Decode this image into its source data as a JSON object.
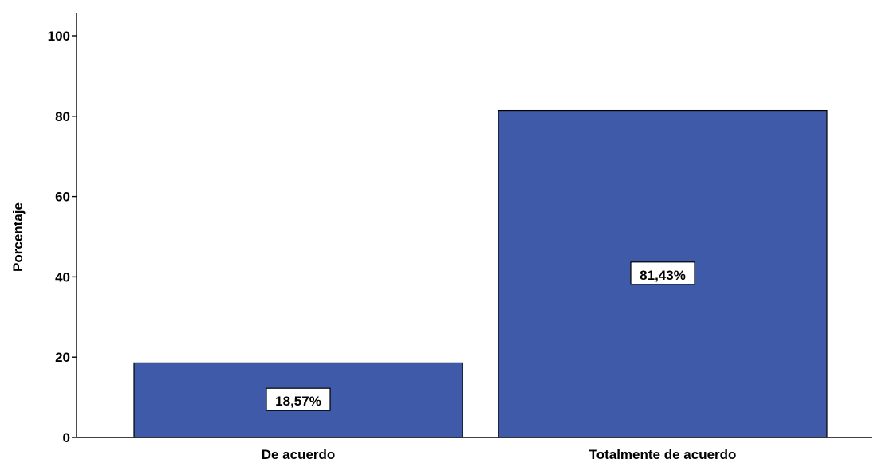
{
  "chart_data": {
    "type": "bar",
    "categories": [
      "De acuerdo",
      "Totalmente de acuerdo"
    ],
    "values": [
      18.57,
      81.43
    ],
    "data_labels": [
      "18,57%",
      "81,43%"
    ],
    "ylabel": "Porcentaje",
    "xlabel": "",
    "ylim": [
      0,
      100
    ],
    "yticks": [
      0,
      20,
      40,
      60,
      80,
      100
    ],
    "ytick_labels": [
      "0",
      "20",
      "40",
      "60",
      "80",
      "100"
    ],
    "bar_color": "#3F5AA8",
    "grid": false,
    "legend": "none"
  }
}
